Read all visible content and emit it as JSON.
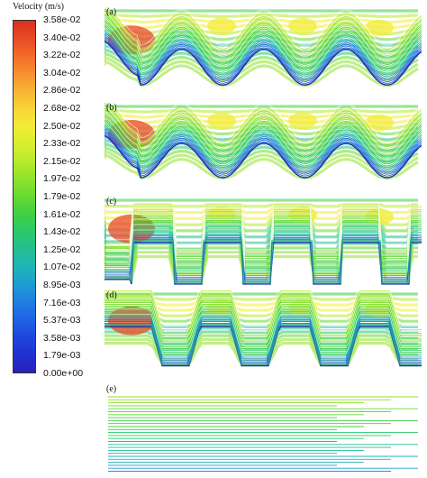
{
  "legend": {
    "title": "Velocity (m/s)",
    "ticks": [
      "3.58e-02",
      "3.40e-02",
      "3.22e-02",
      "3.04e-02",
      "2.86e-02",
      "2.68e-02",
      "2.50e-02",
      "2.33e-02",
      "2.15e-02",
      "1.97e-02",
      "1.79e-02",
      "1.61e-02",
      "1.43e-02",
      "1.25e-02",
      "1.07e-02",
      "8.95e-03",
      "7.16e-03",
      "5.37e-03",
      "3.58e-03",
      "1.79e-03",
      "0.00e+00"
    ],
    "colors": [
      "#d7301f",
      "#e84a25",
      "#f26b2a",
      "#f7902f",
      "#f9b434",
      "#f8d437",
      "#f2ec35",
      "#d8ef2e",
      "#b6ea2b",
      "#8fe22c",
      "#66da31",
      "#3fd045",
      "#2cc86a",
      "#22bf92",
      "#1fb5b7",
      "#1e9bd3",
      "#1f7fe0",
      "#1f62e4",
      "#1f45df",
      "#2130d0",
      "#2a20b8"
    ]
  },
  "panels": [
    {
      "label": "(a)",
      "shape": "sine"
    },
    {
      "label": "(b)",
      "shape": "sine"
    },
    {
      "label": "(c)",
      "shape": "rect"
    },
    {
      "label": "(d)",
      "shape": "trapezoid"
    },
    {
      "label": "(e)",
      "shape": "flat"
    }
  ]
}
